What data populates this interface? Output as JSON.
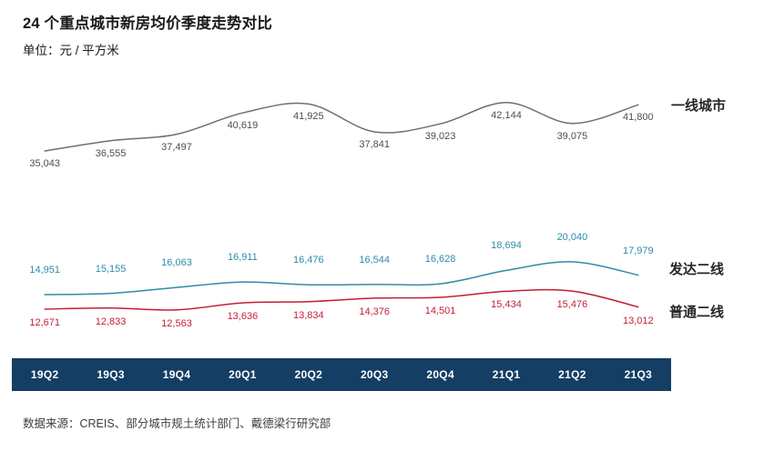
{
  "header": {
    "title": "24 个重点城市新房均价季度走势对比",
    "unit_label": "单位：元 / 平方米"
  },
  "chart_data": {
    "type": "line",
    "title": "24 个重点城市新房均价季度走势对比",
    "ylabel": "元 / 平方米",
    "x": [
      "19Q2",
      "19Q3",
      "19Q4",
      "20Q1",
      "20Q2",
      "20Q3",
      "20Q4",
      "21Q1",
      "21Q2",
      "21Q3"
    ],
    "series": [
      {
        "name": "一线城市",
        "color": "#6f6f6f",
        "label_color": "#4d4d4d",
        "values": [
          35043,
          36555,
          37497,
          40619,
          41925,
          37841,
          39023,
          42144,
          39075,
          41800
        ]
      },
      {
        "name": "发达二线",
        "color": "#2f8ca9",
        "label_color": "#2f8ca9",
        "values": [
          14951,
          15155,
          16063,
          16911,
          16476,
          16544,
          16628,
          18694,
          20040,
          17979
        ]
      },
      {
        "name": "普通二线",
        "color": "#c41e38",
        "label_color": "#c41e38",
        "values": [
          12671,
          12833,
          12563,
          13636,
          13834,
          14376,
          14501,
          15434,
          15476,
          13012
        ]
      }
    ],
    "grid": false,
    "legend_position": "right",
    "value_label_format": "thousands-separated",
    "axis_band_color": "#143e63",
    "axis_text_color": "#ffffff"
  },
  "footer": {
    "source": "数据来源：CREIS、部分城市规土统计部门、戴德梁行研究部"
  }
}
